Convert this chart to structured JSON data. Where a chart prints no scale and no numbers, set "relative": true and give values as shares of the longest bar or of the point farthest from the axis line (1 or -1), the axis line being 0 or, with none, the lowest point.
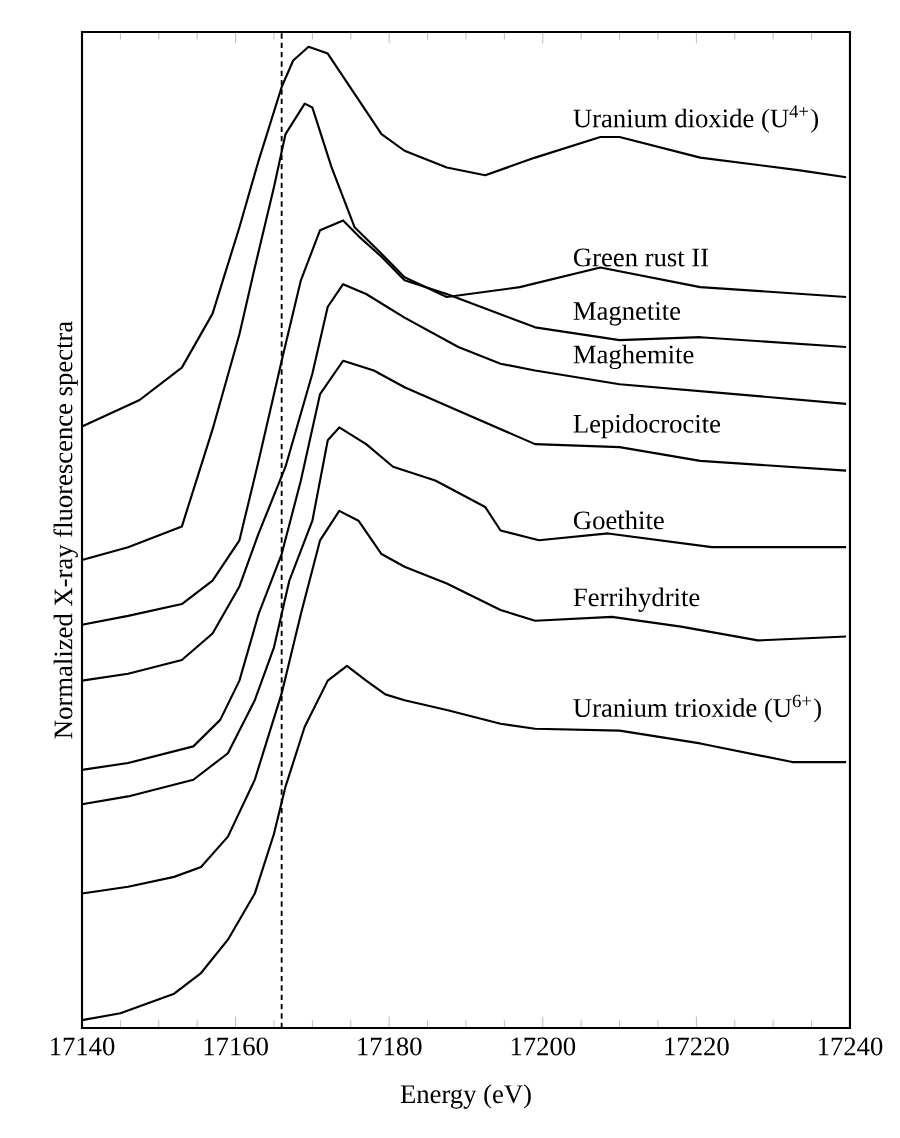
{
  "chart_data": {
    "type": "line",
    "relative": true,
    "xlabel": "Energy (eV)",
    "ylabel": "Normalized X-ray fluorescence spectra",
    "tick_labels": "x",
    "xlim": [
      17140,
      17240
    ],
    "xticks": [
      17140,
      17160,
      17180,
      17200,
      17220,
      17240
    ],
    "ref_lines": [
      {
        "axis": "x",
        "value": 17166,
        "color": "#000000",
        "line_style": "dashed"
      }
    ],
    "series": [
      {
        "name": "Uranium dioxide (U$^{4+}$)",
        "color": "#000000",
        "x": [
          17140,
          17147.5,
          17153,
          17157,
          17160.5,
          17163,
          17166,
          17167.5,
          17169.5,
          17172,
          17175.5,
          17179,
          17182,
          17187.5,
          17192.5,
          17199,
          17207.5,
          17210,
          17220.5,
          17233.5,
          17239.5
        ],
        "values": [
          0.613,
          0.64,
          0.673,
          0.728,
          0.816,
          0.884,
          0.959,
          0.986,
          1.0,
          0.993,
          0.952,
          0.911,
          0.894,
          0.877,
          0.869,
          0.887,
          0.908,
          0.908,
          0.887,
          0.874,
          0.867
        ]
      },
      {
        "name": "Green rust II",
        "color": "#000000",
        "x": [
          17140,
          17146,
          17153,
          17157,
          17160.5,
          17162.5,
          17165,
          17166.5,
          17169,
          17170,
          17172.5,
          17175.5,
          17179,
          17182,
          17187.5,
          17197,
          17207.5,
          17220.5,
          17239.5
        ],
        "values": [
          0.477,
          0.49,
          0.511,
          0.61,
          0.707,
          0.775,
          0.857,
          0.911,
          0.942,
          0.938,
          0.877,
          0.816,
          0.789,
          0.765,
          0.745,
          0.755,
          0.775,
          0.755,
          0.745
        ]
      },
      {
        "name": "Magnetite",
        "color": "#000000",
        "x": [
          17140,
          17146,
          17153,
          17157,
          17160.5,
          17163,
          17166,
          17168.5,
          17171,
          17174,
          17176,
          17179,
          17182,
          17187.5,
          17199,
          17210,
          17220.5,
          17239.5
        ],
        "values": [
          0.411,
          0.42,
          0.432,
          0.456,
          0.497,
          0.578,
          0.68,
          0.762,
          0.813,
          0.823,
          0.807,
          0.786,
          0.762,
          0.748,
          0.714,
          0.701,
          0.704,
          0.694
        ]
      },
      {
        "name": "Maghemite",
        "color": "#000000",
        "x": [
          17140,
          17146,
          17153,
          17157,
          17160.5,
          17163,
          17166.5,
          17170,
          17172,
          17174,
          17177,
          17182,
          17189,
          17194.5,
          17199,
          17210,
          17225,
          17239.5
        ],
        "values": [
          0.354,
          0.361,
          0.375,
          0.402,
          0.45,
          0.504,
          0.572,
          0.667,
          0.735,
          0.758,
          0.748,
          0.724,
          0.694,
          0.677,
          0.67,
          0.656,
          0.646,
          0.636
        ]
      },
      {
        "name": "Lepidocrocite",
        "color": "#000000",
        "x": [
          17140,
          17146,
          17154.5,
          17158,
          17160.5,
          17163,
          17166,
          17168.5,
          17171,
          17174,
          17178,
          17182,
          17189,
          17199,
          17210,
          17220.5,
          17239.5
        ],
        "values": [
          0.263,
          0.27,
          0.287,
          0.314,
          0.354,
          0.422,
          0.483,
          0.558,
          0.646,
          0.68,
          0.67,
          0.653,
          0.629,
          0.595,
          0.592,
          0.578,
          0.568
        ]
      },
      {
        "name": "Goethite",
        "color": "#000000",
        "x": [
          17140,
          17146,
          17154.5,
          17159,
          17162.5,
          17165,
          17167,
          17170,
          17172,
          17173.5,
          17177,
          17180.5,
          17186,
          17192.5,
          17194.5,
          17199.5,
          17208.5,
          17222,
          17239.5
        ],
        "values": [
          0.228,
          0.236,
          0.253,
          0.28,
          0.334,
          0.388,
          0.456,
          0.517,
          0.599,
          0.612,
          0.595,
          0.572,
          0.558,
          0.531,
          0.507,
          0.497,
          0.504,
          0.49,
          0.49
        ]
      },
      {
        "name": "Ferrihydrite",
        "color": "#000000",
        "x": [
          17140,
          17146,
          17152,
          17155.5,
          17159,
          17162.5,
          17166,
          17168.5,
          17171,
          17173.5,
          17176,
          17179,
          17182,
          17187.5,
          17194.5,
          17199,
          17209,
          17218,
          17228,
          17239.5
        ],
        "values": [
          0.137,
          0.144,
          0.154,
          0.164,
          0.195,
          0.253,
          0.341,
          0.422,
          0.497,
          0.527,
          0.517,
          0.483,
          0.47,
          0.453,
          0.426,
          0.415,
          0.419,
          0.409,
          0.395,
          0.399
        ]
      },
      {
        "name": "Uranium trioxide (U$^{6+}$)",
        "color": "#000000",
        "x": [
          17140,
          17145,
          17152,
          17155.5,
          17159,
          17162.5,
          17165,
          17166.5,
          17169,
          17172,
          17174.5,
          17177,
          17179.5,
          17182,
          17187.5,
          17194.5,
          17199,
          17210,
          17220.5,
          17232.5,
          17239.5
        ],
        "values": [
          0.008,
          0.015,
          0.035,
          0.056,
          0.09,
          0.137,
          0.198,
          0.246,
          0.307,
          0.354,
          0.369,
          0.354,
          0.34,
          0.334,
          0.324,
          0.31,
          0.305,
          0.303,
          0.29,
          0.271,
          0.271
        ]
      }
    ]
  }
}
